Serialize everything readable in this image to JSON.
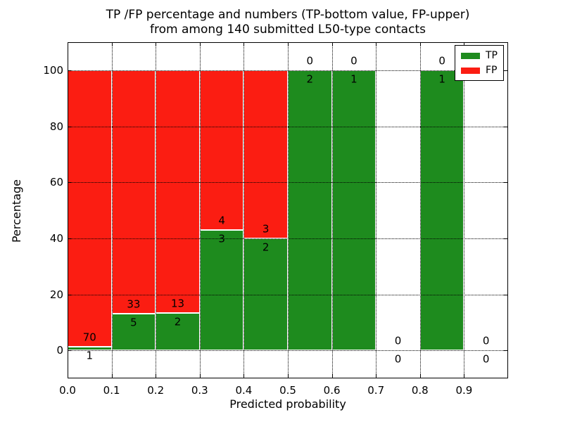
{
  "window": {
    "background": "#ffffff"
  },
  "chart_data": {
    "type": "bar",
    "stacked": true,
    "title_line1": "TP /FP percentage and numbers (TP-bottom value, FP-upper)",
    "title_line2": "from among 140 submitted L50-type contacts",
    "xlabel": "Predicted probability",
    "ylabel": "Percentage",
    "total_submitted_contacts": 140,
    "xlim": [
      0.0,
      1.0
    ],
    "ylim": [
      -10,
      110
    ],
    "x_ticks": [
      0.0,
      0.1,
      0.2,
      0.3,
      0.4,
      0.5,
      0.6,
      0.7,
      0.8,
      0.9
    ],
    "x_tick_labels": [
      "0.0",
      "0.1",
      "0.2",
      "0.3",
      "0.4",
      "0.5",
      "0.6",
      "0.7",
      "0.8",
      "0.9"
    ],
    "y_ticks": [
      0,
      20,
      40,
      60,
      80,
      100
    ],
    "y_tick_labels": [
      "0",
      "20",
      "40",
      "60",
      "80",
      "100"
    ],
    "grid": {
      "style": "dotted",
      "color": "#000000",
      "over_bars": true
    },
    "colors": {
      "tp": "#1e8b1e",
      "fp": "#fb1d12",
      "bar_edge": "#ffffff",
      "axis": "#000000"
    },
    "legend": {
      "position": "upper-right",
      "entries": [
        {
          "label": "TP",
          "color": "#1e8b1e"
        },
        {
          "label": "FP",
          "color": "#fb1d12"
        }
      ]
    },
    "bins": [
      {
        "x0": 0.0,
        "x1": 0.1,
        "tp": 1,
        "fp": 70,
        "tp_pct": 1.4,
        "has_bar": true
      },
      {
        "x0": 0.1,
        "x1": 0.2,
        "tp": 5,
        "fp": 33,
        "tp_pct": 13.2,
        "has_bar": true
      },
      {
        "x0": 0.2,
        "x1": 0.3,
        "tp": 2,
        "fp": 13,
        "tp_pct": 13.3,
        "has_bar": true
      },
      {
        "x0": 0.3,
        "x1": 0.4,
        "tp": 3,
        "fp": 4,
        "tp_pct": 42.9,
        "has_bar": true
      },
      {
        "x0": 0.4,
        "x1": 0.5,
        "tp": 2,
        "fp": 3,
        "tp_pct": 40.0,
        "has_bar": true
      },
      {
        "x0": 0.5,
        "x1": 0.6,
        "tp": 2,
        "fp": 0,
        "tp_pct": 100,
        "has_bar": true
      },
      {
        "x0": 0.6,
        "x1": 0.7,
        "tp": 1,
        "fp": 0,
        "tp_pct": 100,
        "has_bar": true
      },
      {
        "x0": 0.7,
        "x1": 0.8,
        "tp": 0,
        "fp": 0,
        "tp_pct": null,
        "has_bar": false
      },
      {
        "x0": 0.8,
        "x1": 0.9,
        "tp": 1,
        "fp": 0,
        "tp_pct": 100,
        "has_bar": true
      },
      {
        "x0": 0.9,
        "x1": 1.0,
        "tp": 0,
        "fp": 0,
        "tp_pct": null,
        "has_bar": false
      }
    ]
  }
}
